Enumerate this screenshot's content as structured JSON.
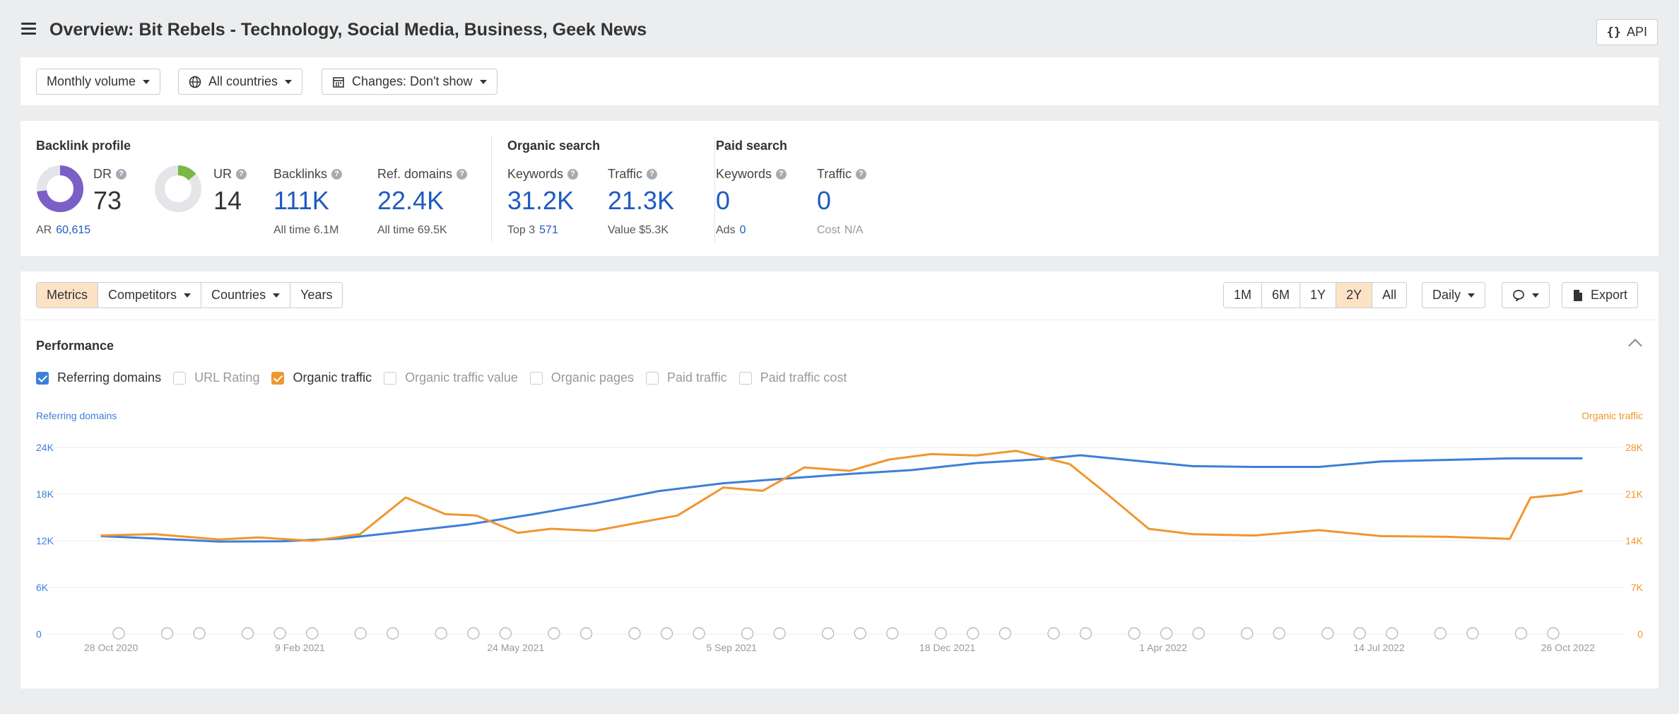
{
  "header": {
    "title": "Overview: Bit Rebels - Technology, Social Media, Business, Geek News",
    "api_label": "API",
    "api_icon": "{}"
  },
  "filters": {
    "volume": "Monthly volume",
    "countries": "All countries",
    "changes": "Changes: Don't show"
  },
  "backlink": {
    "title": "Backlink profile",
    "dr_label": "DR",
    "dr_value": "73",
    "ur_label": "UR",
    "ur_value": "14",
    "ar_label": "AR",
    "ar_value": "60,615",
    "backlinks_label": "Backlinks",
    "backlinks_value": "111K",
    "backlinks_alltime_label": "All time",
    "backlinks_alltime": "6.1M",
    "refdomains_label": "Ref. domains",
    "refdomains_value": "22.4K",
    "refdomains_alltime_label": "All time",
    "refdomains_alltime": "69.5K",
    "dr_fraction": 0.73,
    "ur_fraction": 0.14
  },
  "organic": {
    "title": "Organic search",
    "keywords_label": "Keywords",
    "keywords_value": "31.2K",
    "top3_label": "Top 3",
    "top3_value": "571",
    "traffic_label": "Traffic",
    "traffic_value": "21.3K",
    "value_label": "Value",
    "value_value": "$5.3K"
  },
  "paid": {
    "title": "Paid search",
    "keywords_label": "Keywords",
    "keywords_value": "0",
    "ads_label": "Ads",
    "ads_value": "0",
    "traffic_label": "Traffic",
    "traffic_value": "0",
    "cost_label": "Cost",
    "cost_value": "N/A"
  },
  "tabs": {
    "metrics": "Metrics",
    "competitors": "Competitors",
    "countries": "Countries",
    "years": "Years"
  },
  "ranges": [
    "1M",
    "6M",
    "1Y",
    "2Y",
    "All"
  ],
  "active_range": "2Y",
  "interval": "Daily",
  "export_label": "Export",
  "performance": {
    "title": "Performance",
    "checkboxes": [
      {
        "label": "Referring domains",
        "checked": true,
        "color": "#3c7fd8"
      },
      {
        "label": "URL Rating",
        "checked": false
      },
      {
        "label": "Organic traffic",
        "checked": true,
        "color": "#f0962e"
      },
      {
        "label": "Organic traffic value",
        "checked": false
      },
      {
        "label": "Organic pages",
        "checked": false
      },
      {
        "label": "Paid traffic",
        "checked": false
      },
      {
        "label": "Paid traffic cost",
        "checked": false
      }
    ]
  },
  "colors": {
    "blue": "#3c7fd8",
    "orange": "#f0962e",
    "link": "#1e5bbf",
    "dr_purple": "#7b5fc6",
    "ur_green": "#7ab648"
  },
  "chart_data": {
    "type": "line",
    "left_axis_label": "Referring domains",
    "right_axis_label": "Organic traffic",
    "left_ticks": [
      "0",
      "6K",
      "12K",
      "18K",
      "24K"
    ],
    "right_ticks": [
      "0",
      "7K",
      "14K",
      "21K",
      "28K"
    ],
    "left_ylim": [
      0,
      24000
    ],
    "right_ylim": [
      0,
      28000
    ],
    "x_labels": [
      "28 Oct 2020",
      "9 Feb 2021",
      "24 May 2021",
      "5 Sep 2021",
      "18 Dec 2021",
      "1 Apr 2022",
      "14 Jul 2022",
      "26 Oct 2022"
    ],
    "x_range": [
      "2020-10-28",
      "2022-10-26"
    ],
    "grid": true,
    "series": [
      {
        "name": "Referring domains",
        "axis": "left",
        "color": "#3c7fd8",
        "x": [
          "2020-11-05",
          "2020-12-01",
          "2021-01-01",
          "2021-02-01",
          "2021-03-01",
          "2021-04-01",
          "2021-05-01",
          "2021-06-01",
          "2021-07-01",
          "2021-08-01",
          "2021-09-01",
          "2021-10-01",
          "2021-11-01",
          "2021-12-01",
          "2022-01-01",
          "2022-02-01",
          "2022-02-20",
          "2022-03-15",
          "2022-04-15",
          "2022-05-15",
          "2022-06-15",
          "2022-07-15",
          "2022-08-15",
          "2022-09-15",
          "2022-10-20"
        ],
        "values": [
          12600,
          12300,
          11900,
          11950,
          12300,
          13200,
          14100,
          15400,
          16800,
          18400,
          19400,
          20000,
          20600,
          21100,
          22000,
          22500,
          23000,
          22400,
          21600,
          21500,
          21500,
          22200,
          22400,
          22600,
          22600
        ]
      },
      {
        "name": "Organic traffic",
        "axis": "right",
        "color": "#f0962e",
        "x": [
          "2020-11-05",
          "2020-12-01",
          "2021-01-01",
          "2021-01-20",
          "2021-02-15",
          "2021-03-10",
          "2021-04-01",
          "2021-04-20",
          "2021-05-05",
          "2021-05-25",
          "2021-06-10",
          "2021-07-01",
          "2021-07-20",
          "2021-08-10",
          "2021-09-01",
          "2021-09-20",
          "2021-10-10",
          "2021-11-01",
          "2021-11-20",
          "2021-12-10",
          "2022-01-01",
          "2022-01-20",
          "2022-02-15",
          "2022-03-05",
          "2022-03-25",
          "2022-04-15",
          "2022-05-15",
          "2022-06-15",
          "2022-07-15",
          "2022-08-15",
          "2022-09-15",
          "2022-09-25",
          "2022-10-10",
          "2022-10-20"
        ],
        "values": [
          14800,
          15000,
          14200,
          14500,
          14000,
          15000,
          20500,
          18000,
          17800,
          15200,
          15800,
          15500,
          16600,
          17800,
          22000,
          21500,
          25000,
          24500,
          26200,
          27000,
          26800,
          27500,
          25500,
          21000,
          15800,
          15000,
          14800,
          15600,
          14700,
          14600,
          14300,
          20500,
          20900,
          21500
        ]
      }
    ],
    "event_markers": 38
  }
}
